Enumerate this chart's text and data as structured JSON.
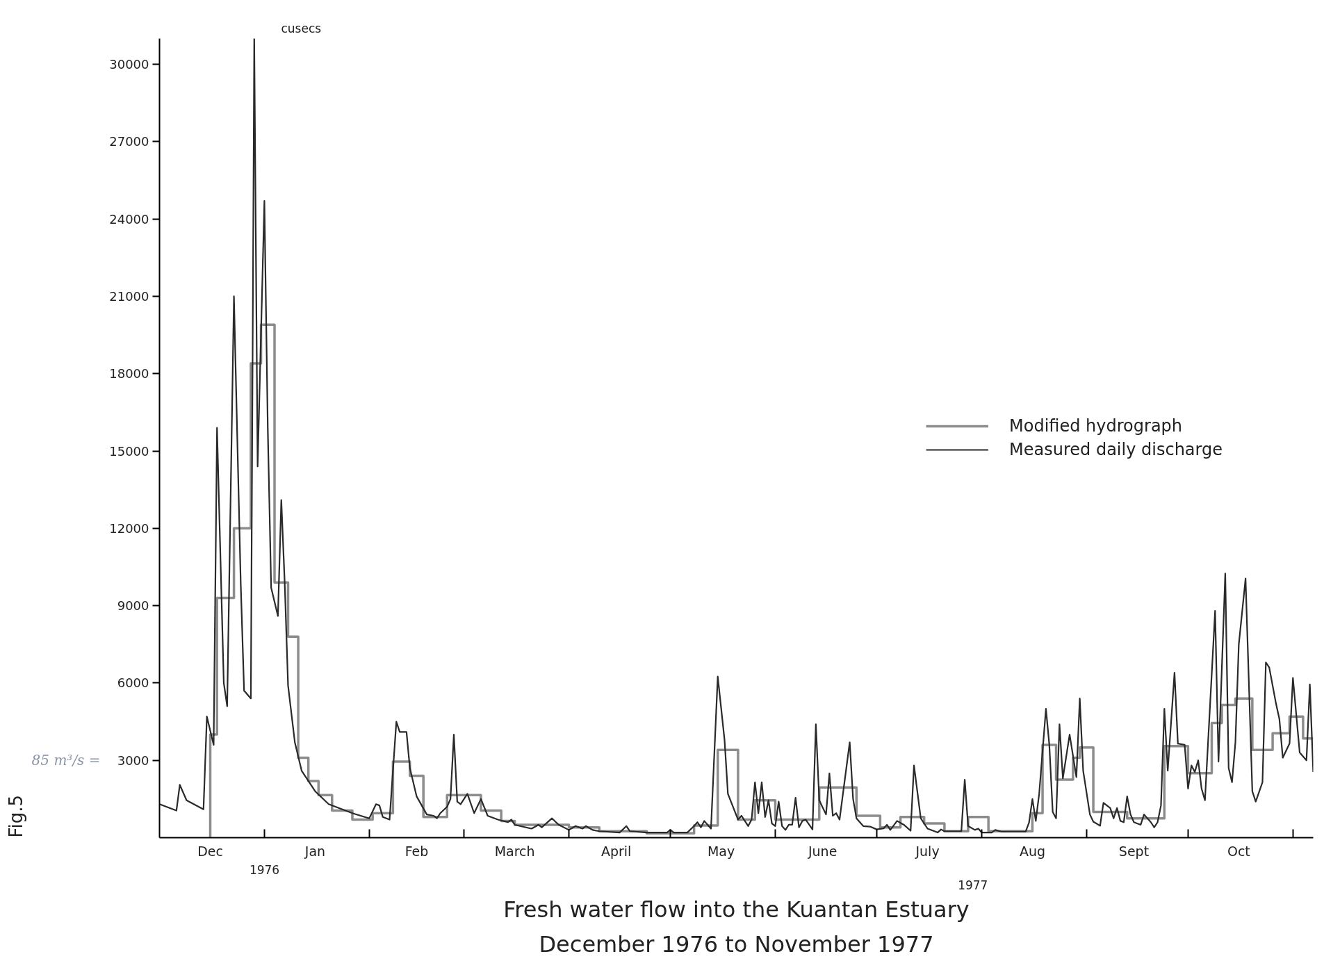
{
  "chart_data": {
    "type": "line",
    "title": "Fresh water flow into the Kuantan Estuary",
    "subtitle": "December 1976 to November 1977",
    "ylabel": "cusecs",
    "xlim": [
      "1976-12-01",
      "1977-11-07"
    ],
    "ylim": [
      0,
      31000
    ],
    "yticks": [
      3000,
      6000,
      9000,
      12000,
      15000,
      18000,
      21000,
      24000,
      27000,
      30000
    ],
    "xticks": [
      {
        "value": "1977-01-01",
        "label": null
      },
      {
        "value": "1977-02-01",
        "label": null
      },
      {
        "value": "1977-03-01",
        "label": null
      },
      {
        "value": "1977-04-01",
        "label": null
      },
      {
        "value": "1977-05-01",
        "label": null
      },
      {
        "value": "1977-06-01",
        "label": null
      },
      {
        "value": "1977-07-01",
        "label": null
      },
      {
        "value": "1977-08-01",
        "label": null
      },
      {
        "value": "1977-09-01",
        "label": null
      },
      {
        "value": "1977-10-01",
        "label": null
      },
      {
        "value": "1977-11-01",
        "label": null
      },
      {
        "value": "1976-12-16",
        "label": "Dec"
      },
      {
        "value": "1977-01-16",
        "label": "Jan"
      },
      {
        "value": "1977-02-15",
        "label": "Feb"
      },
      {
        "value": "1977-03-16",
        "label": "March"
      },
      {
        "value": "1977-04-15",
        "label": "April"
      },
      {
        "value": "1977-05-16",
        "label": "May"
      },
      {
        "value": "1977-06-15",
        "label": "June"
      },
      {
        "value": "1977-07-16",
        "label": "July"
      },
      {
        "value": "1977-08-16",
        "label": "Aug"
      },
      {
        "value": "1977-09-15",
        "label": "Sept"
      },
      {
        "value": "1977-10-16",
        "label": "Oct"
      }
    ],
    "grid": false,
    "legend": "right",
    "annotations": [
      "1976",
      "1977",
      "85 m³/s =",
      "Fig.5"
    ],
    "series": [
      {
        "name": "Modified hydrograph",
        "type": "step",
        "color": "#8c8c8c",
        "x": [
          "1976-12-16",
          "1976-12-16",
          "1976-12-18",
          "1976-12-23",
          "1976-12-28",
          "1976-12-31",
          "1977-01-04",
          "1977-01-08",
          "1977-01-11",
          "1977-01-14",
          "1977-01-17",
          "1977-01-21",
          "1977-01-27",
          "1977-02-02",
          "1977-02-08",
          "1977-02-13",
          "1977-02-17",
          "1977-02-24",
          "1977-03-06",
          "1977-03-12",
          "1977-03-16",
          "1977-04-01",
          "1977-04-10",
          "1977-04-24",
          "1977-05-08",
          "1977-05-15",
          "1977-05-21",
          "1977-05-26",
          "1977-06-01",
          "1977-06-14",
          "1977-06-25",
          "1977-07-02",
          "1977-07-08",
          "1977-07-15",
          "1977-07-21",
          "1977-07-28",
          "1977-08-03",
          "1977-08-16",
          "1977-08-19",
          "1977-08-23",
          "1977-08-28",
          "1977-08-30",
          "1977-09-03",
          "1977-09-13",
          "1977-09-24",
          "1977-10-01",
          "1977-10-08",
          "1977-10-11",
          "1977-10-15",
          "1977-10-20",
          "1977-10-26",
          "1977-10-31",
          "1977-11-04",
          "1977-11-07"
        ],
        "values": [
          0,
          4000,
          9300,
          12000,
          18400,
          19900,
          9900,
          7800,
          3100,
          2200,
          1650,
          1050,
          700,
          950,
          2950,
          2400,
          800,
          1650,
          1050,
          650,
          500,
          400,
          250,
          170,
          470,
          3400,
          700,
          1450,
          700,
          1950,
          850,
          400,
          800,
          550,
          250,
          800,
          250,
          950,
          3600,
          2250,
          3100,
          3500,
          1000,
          750,
          3550,
          2500,
          4450,
          5150,
          5400,
          3400,
          4050,
          4700,
          3850,
          3850
        ]
      },
      {
        "name": "Measured daily discharge",
        "color": "#2a2a2a",
        "x": [
          "1976-12-01",
          "1976-12-06",
          "1976-12-07",
          "1976-12-09",
          "1976-12-14",
          "1976-12-15",
          "1976-12-17",
          "1976-12-18",
          "1976-12-20",
          "1976-12-21",
          "1976-12-23",
          "1976-12-25",
          "1976-12-26",
          "1976-12-28",
          "1976-12-29",
          "1976-12-30",
          "1977-01-01",
          "1977-01-02",
          "1977-01-03",
          "1977-01-05",
          "1977-01-06",
          "1977-01-07",
          "1977-01-08",
          "1977-01-10",
          "1977-01-12",
          "1977-01-16",
          "1977-01-20",
          "1977-01-27",
          "1977-02-01",
          "1977-02-03",
          "1977-02-04",
          "1977-02-05",
          "1977-02-07",
          "1977-02-09",
          "1977-02-10",
          "1977-02-12",
          "1977-02-13",
          "1977-02-15",
          "1977-02-18",
          "1977-02-20",
          "1977-02-21",
          "1977-02-22",
          "1977-02-24",
          "1977-02-25",
          "1977-02-26",
          "1977-02-27",
          "1977-02-28",
          "1977-03-02",
          "1977-03-04",
          "1977-03-06",
          "1977-03-08",
          "1977-03-11",
          "1977-03-14",
          "1977-03-15",
          "1977-03-16",
          "1977-03-21",
          "1977-03-23",
          "1977-03-24",
          "1977-03-27",
          "1977-03-29",
          "1977-04-01",
          "1977-04-03",
          "1977-04-05",
          "1977-04-06",
          "1977-04-08",
          "1977-04-10",
          "1977-04-16",
          "1977-04-18",
          "1977-04-19",
          "1977-04-24",
          "1977-04-30",
          "1977-05-01",
          "1977-05-02",
          "1977-05-06",
          "1977-05-08",
          "1977-05-09",
          "1977-05-10",
          "1977-05-11",
          "1977-05-13",
          "1977-05-15",
          "1977-05-17",
          "1977-05-18",
          "1977-05-21",
          "1977-05-22",
          "1977-05-24",
          "1977-05-25",
          "1977-05-26",
          "1977-05-27",
          "1977-05-28",
          "1977-05-29",
          "1977-05-30",
          "1977-05-31",
          "1977-06-01",
          "1977-06-02",
          "1977-06-03",
          "1977-06-04",
          "1977-06-05",
          "1977-06-06",
          "1977-06-07",
          "1977-06-08",
          "1977-06-09",
          "1977-06-10",
          "1977-06-12",
          "1977-06-13",
          "1977-06-14",
          "1977-06-16",
          "1977-06-17",
          "1977-06-18",
          "1977-06-19",
          "1977-06-20",
          "1977-06-23",
          "1977-06-24",
          "1977-06-25",
          "1977-06-27",
          "1977-06-29",
          "1977-07-01",
          "1977-07-03",
          "1977-07-04",
          "1977-07-05",
          "1977-07-07",
          "1977-07-09",
          "1977-07-11",
          "1977-07-12",
          "1977-07-14",
          "1977-07-16",
          "1977-07-19",
          "1977-07-20",
          "1977-07-21",
          "1977-07-26",
          "1977-07-27",
          "1977-07-28",
          "1977-07-30",
          "1977-07-31",
          "1977-08-01",
          "1977-08-04",
          "1977-08-05",
          "1977-08-07",
          "1977-08-14",
          "1977-08-15",
          "1977-08-16",
          "1977-08-17",
          "1977-08-18",
          "1977-08-20",
          "1977-08-21",
          "1977-08-22",
          "1977-08-23",
          "1977-08-24",
          "1977-08-25",
          "1977-08-27",
          "1977-08-29",
          "1977-08-30",
          "1977-08-31",
          "1977-09-02",
          "1977-09-03",
          "1977-09-05",
          "1977-09-06",
          "1977-09-08",
          "1977-09-09",
          "1977-09-10",
          "1977-09-11",
          "1977-09-12",
          "1977-09-13",
          "1977-09-14",
          "1977-09-15",
          "1977-09-17",
          "1977-09-18",
          "1977-09-20",
          "1977-09-21",
          "1977-09-22",
          "1977-09-23",
          "1977-09-24",
          "1977-09-25",
          "1977-09-27",
          "1977-09-28",
          "1977-09-30",
          "1977-10-01",
          "1977-10-02",
          "1977-10-03",
          "1977-10-04",
          "1977-10-05",
          "1977-10-06",
          "1977-10-09",
          "1977-10-10",
          "1977-10-12",
          "1977-10-13",
          "1977-10-14",
          "1977-10-15",
          "1977-10-16",
          "1977-10-18",
          "1977-10-20",
          "1977-10-21",
          "1977-10-23",
          "1977-10-24",
          "1977-10-25",
          "1977-10-27",
          "1977-10-28",
          "1977-10-29",
          "1977-10-31",
          "1977-11-01",
          "1977-11-03",
          "1977-11-05",
          "1977-11-06",
          "1977-11-07"
        ],
        "values": [
          1300,
          1050,
          2050,
          1450,
          1100,
          4700,
          3600,
          15900,
          6000,
          5100,
          21000,
          9900,
          5700,
          5400,
          31000,
          14400,
          24700,
          15900,
          9700,
          8600,
          13100,
          9900,
          5900,
          3700,
          2600,
          1800,
          1300,
          950,
          750,
          1300,
          1250,
          800,
          700,
          4500,
          4100,
          4100,
          2700,
          1600,
          900,
          850,
          750,
          950,
          1200,
          1500,
          4000,
          1400,
          1300,
          1700,
          950,
          1500,
          850,
          700,
          600,
          700,
          500,
          350,
          500,
          400,
          750,
          500,
          300,
          450,
          350,
          450,
          300,
          250,
          200,
          450,
          250,
          200,
          200,
          300,
          200,
          200,
          450,
          600,
          400,
          650,
          350,
          6250,
          3800,
          1700,
          700,
          850,
          450,
          700,
          2150,
          950,
          2150,
          800,
          1450,
          550,
          450,
          1400,
          450,
          300,
          500,
          500,
          1550,
          400,
          650,
          700,
          320,
          4400,
          1450,
          900,
          2500,
          850,
          950,
          700,
          3700,
          1500,
          750,
          450,
          430,
          320,
          360,
          500,
          300,
          650,
          500,
          270,
          2800,
          750,
          350,
          200,
          320,
          250,
          250,
          2250,
          450,
          300,
          350,
          200,
          200,
          300,
          230,
          230,
          580,
          1500,
          650,
          1700,
          5000,
          3600,
          1000,
          750,
          4400,
          2300,
          4000,
          2350,
          5400,
          2600,
          900,
          620,
          460,
          1350,
          1150,
          750,
          1150,
          650,
          600,
          1600,
          900,
          600,
          500,
          900,
          600,
          400,
          600,
          1250,
          5000,
          2600,
          6400,
          3650,
          3600,
          1900,
          2800,
          2550,
          3000,
          1900,
          1450,
          8800,
          2950,
          10250,
          2700,
          2150,
          3700,
          7500,
          10050,
          1800,
          1400,
          2150,
          6800,
          6600,
          5200,
          4600,
          3100,
          3650,
          6200,
          3300,
          3000,
          5950,
          2550
        ]
      }
    ]
  }
}
